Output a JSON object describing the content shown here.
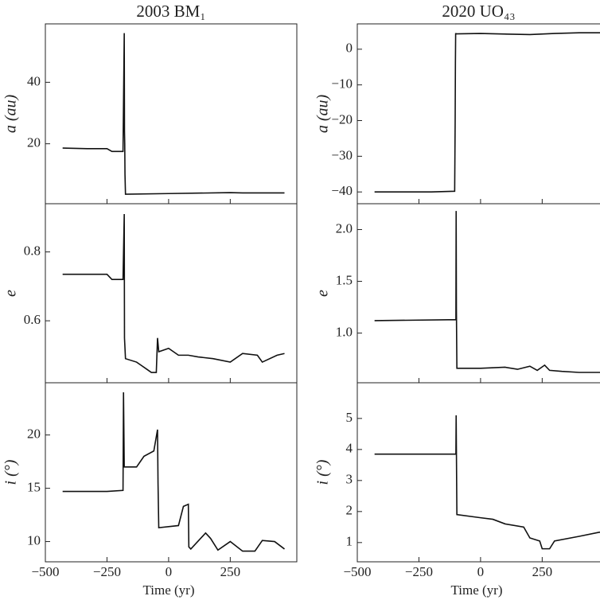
{
  "chart_data": [
    {
      "type": "line",
      "title": "2003 BM₁",
      "ylabel": "a (au)",
      "x": [
        -430,
        -330,
        -250,
        -230,
        -185,
        -180,
        -179,
        -178,
        -177,
        -175,
        0,
        250,
        300,
        470
      ],
      "series": [
        {
          "color": "#111111",
          "values": [
            18.6,
            18.4,
            18.4,
            17.5,
            17.5,
            56,
            24,
            20,
            10,
            3.6,
            3.8,
            4.1,
            4.0,
            4.0
          ]
        }
      ],
      "xlim": [
        -500,
        520
      ],
      "ylim": [
        0.5,
        59
      ],
      "yticks": [
        20,
        40
      ]
    },
    {
      "type": "line",
      "ylabel": "e",
      "x": [
        -430,
        -250,
        -230,
        -185,
        -180,
        -179,
        -175,
        -130,
        -110,
        -90,
        -70,
        -50,
        -45,
        -40,
        0,
        40,
        80,
        120,
        180,
        250,
        300,
        360,
        380,
        440,
        470
      ],
      "series": [
        {
          "color": "#111111",
          "values": [
            0.735,
            0.735,
            0.72,
            0.72,
            0.91,
            0.55,
            0.49,
            0.48,
            0.47,
            0.46,
            0.45,
            0.45,
            0.55,
            0.51,
            0.52,
            0.5,
            0.5,
            0.495,
            0.49,
            0.48,
            0.505,
            0.5,
            0.48,
            0.5,
            0.505
          ]
        }
      ],
      "xlim": [
        -500,
        520
      ],
      "ylim": [
        0.42,
        0.94
      ],
      "yticks": [
        0.6,
        0.8
      ]
    },
    {
      "type": "line",
      "ylabel": "i (°)",
      "xlabel": "Time (yr)",
      "x": [
        -430,
        -250,
        -185,
        -183,
        -180,
        -130,
        -100,
        -60,
        -45,
        -43,
        -40,
        40,
        60,
        80,
        82,
        90,
        150,
        170,
        200,
        250,
        300,
        350,
        380,
        430,
        470
      ],
      "series": [
        {
          "color": "#111111",
          "values": [
            14.7,
            14.7,
            14.8,
            24,
            17,
            17,
            18,
            18.5,
            20.5,
            15.5,
            11.3,
            11.5,
            13.3,
            13.5,
            9.5,
            9.3,
            10.8,
            10.3,
            9.2,
            10,
            9.1,
            9.1,
            10.1,
            10,
            9.3
          ]
        }
      ],
      "xlim": [
        -500,
        520
      ],
      "ylim": [
        8.1,
        24.9
      ],
      "yticks": [
        10,
        15,
        20
      ],
      "xticks": [
        {
          "value": -500,
          "label": "−500"
        },
        {
          "value": -250,
          "label": "−250"
        },
        0,
        250
      ]
    },
    {
      "type": "line",
      "title": "2020 UO₄₃",
      "ylabel": "a (au)",
      "x": [
        -430,
        -200,
        -105,
        -103,
        -102,
        -101,
        -100,
        0,
        200,
        300,
        400,
        520
      ],
      "series": [
        {
          "color": "#111111",
          "values": [
            -40,
            -40,
            -39.8,
            -20,
            -4,
            4.5,
            4.3,
            4.4,
            4.1,
            4.4,
            4.6,
            4.6
          ]
        }
      ],
      "xlim": [
        -500,
        520
      ],
      "ylim": [
        -43.3,
        7.1
      ],
      "yticks": [
        0,
        {
          "value": -10,
          "label": "−10"
        },
        {
          "value": -20,
          "label": "−20"
        },
        {
          "value": -30,
          "label": "−30"
        },
        {
          "value": -40,
          "label": "−40"
        }
      ]
    },
    {
      "type": "line",
      "ylabel": "e",
      "x": [
        -430,
        -100,
        -99,
        -98,
        -96,
        0,
        100,
        150,
        200,
        230,
        260,
        280,
        330,
        400,
        520
      ],
      "series": [
        {
          "color": "#111111",
          "values": [
            1.12,
            1.13,
            2.18,
            1.24,
            0.66,
            0.66,
            0.67,
            0.65,
            0.68,
            0.64,
            0.69,
            0.64,
            0.63,
            0.62,
            0.62
          ]
        }
      ],
      "xlim": [
        -500,
        520
      ],
      "ylim": [
        0.52,
        2.25
      ],
      "yticks": [
        {
          "value": 1.0,
          "label": "1.0"
        },
        1.5,
        {
          "value": 2.0,
          "label": "2.0"
        }
      ]
    },
    {
      "type": "line",
      "ylabel": "i (°)",
      "xlabel": "Time (yr)",
      "x": [
        -430,
        -100,
        -99,
        -98,
        -96,
        0,
        50,
        100,
        175,
        200,
        240,
        250,
        280,
        300,
        400,
        480,
        520
      ],
      "series": [
        {
          "color": "#111111",
          "values": [
            3.85,
            3.85,
            5.1,
            4.0,
            1.9,
            1.8,
            1.75,
            1.6,
            1.5,
            1.15,
            1.05,
            0.8,
            0.8,
            1.05,
            1.2,
            1.33,
            1.35
          ]
        }
      ],
      "xlim": [
        -500,
        520
      ],
      "ylim": [
        0.38,
        6.15
      ],
      "yticks": [
        1,
        2,
        3,
        4,
        5
      ],
      "xticks": [
        {
          "value": -500,
          "label": "−500"
        },
        {
          "value": -250,
          "label": "−250"
        },
        0,
        250
      ]
    }
  ]
}
